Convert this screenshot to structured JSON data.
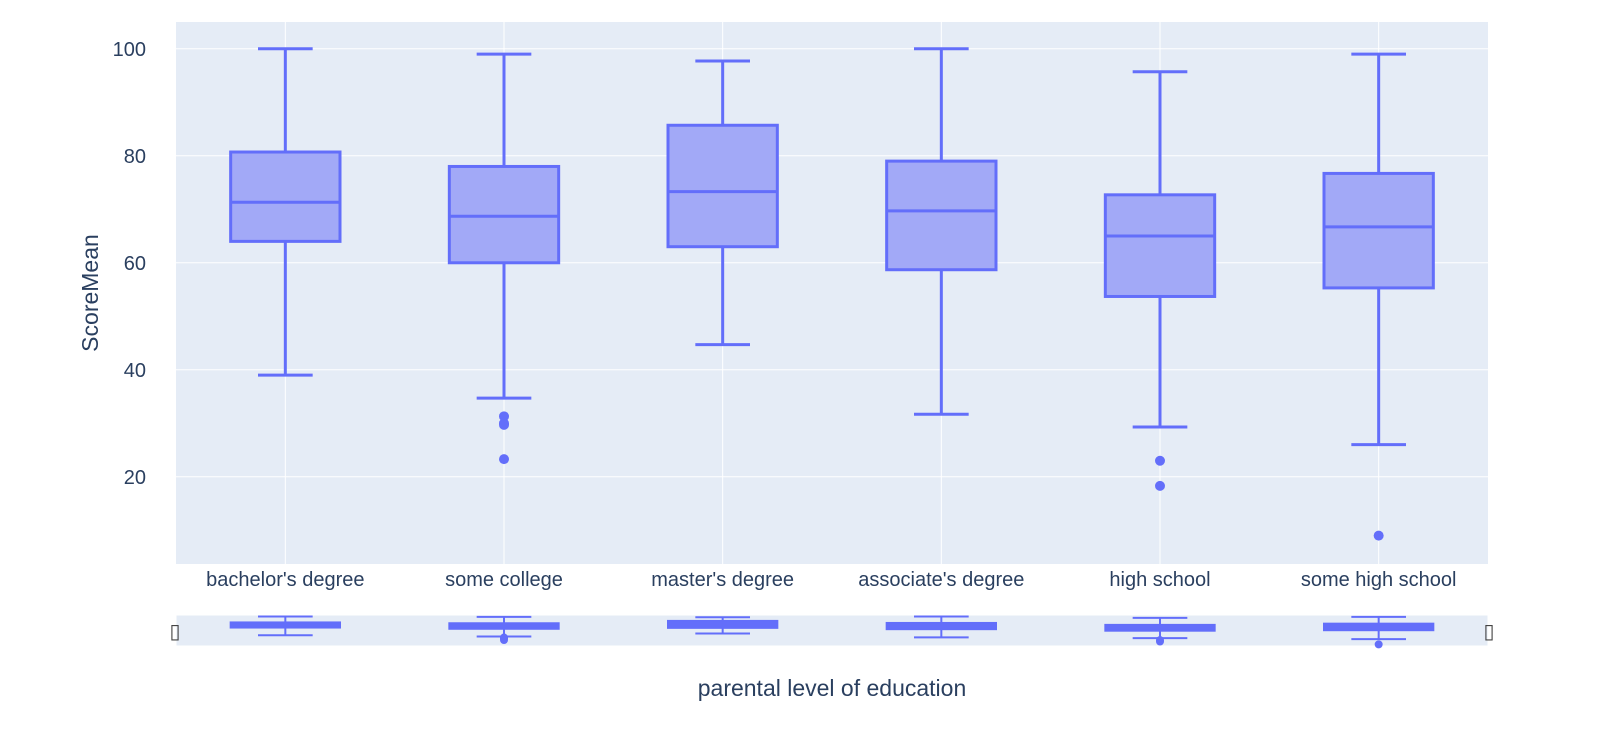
{
  "chart_data": {
    "type": "box",
    "xlabel": "parental level of education",
    "ylabel": "ScoreMean",
    "ylim": [
      3.7,
      105
    ],
    "yticks": [
      20,
      40,
      60,
      80,
      100
    ],
    "grid": true,
    "rangeslider": true,
    "colors": {
      "plot_bg": "#E5ECF6",
      "grid": "#FFFFFF",
      "box_line": "#636EFA",
      "box_fill": "#A2A9F7",
      "text": "#2a3f5f"
    },
    "categories": [
      "bachelor's degree",
      "some college",
      "master's degree",
      "associate's degree",
      "high school",
      "some high school"
    ],
    "boxes": [
      {
        "category": "bachelor's degree",
        "lower_whisker": 39,
        "q1": 64,
        "median": 71.3,
        "q3": 80.7,
        "upper_whisker": 100,
        "outliers": []
      },
      {
        "category": "some college",
        "lower_whisker": 34.7,
        "q1": 60,
        "median": 68.7,
        "q3": 78,
        "upper_whisker": 99,
        "outliers": [
          31.3,
          30,
          29.7,
          23.3
        ]
      },
      {
        "category": "master's degree",
        "lower_whisker": 44.7,
        "q1": 63,
        "median": 73.3,
        "q3": 85.7,
        "upper_whisker": 97.7,
        "outliers": []
      },
      {
        "category": "associate's degree",
        "lower_whisker": 31.7,
        "q1": 58.7,
        "median": 69.7,
        "q3": 79,
        "upper_whisker": 100,
        "outliers": []
      },
      {
        "category": "high school",
        "lower_whisker": 29.3,
        "q1": 53.7,
        "median": 65,
        "q3": 72.7,
        "upper_whisker": 95.7,
        "outliers": [
          23,
          18.3
        ]
      },
      {
        "category": "some high school",
        "lower_whisker": 26,
        "q1": 55.3,
        "median": 66.7,
        "q3": 76.7,
        "upper_whisker": 99,
        "outliers": [
          9
        ]
      }
    ]
  }
}
